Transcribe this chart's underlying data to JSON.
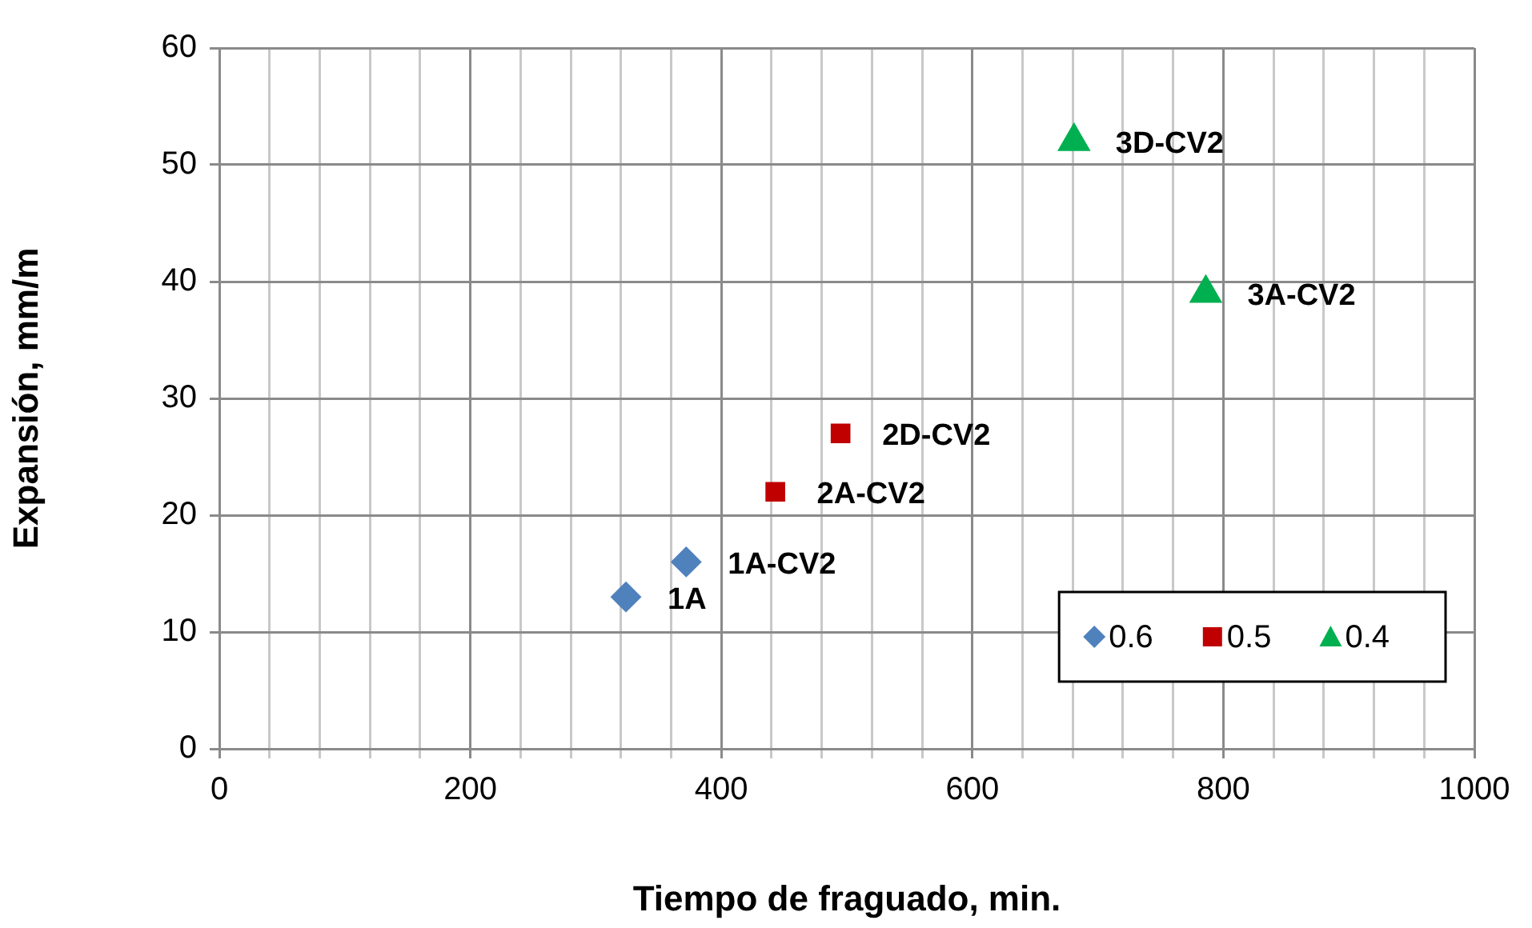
{
  "chart_data": {
    "type": "scatter",
    "xlabel": "Tiempo de fraguado, min.",
    "ylabel": "Expansión, mm/m",
    "xlim": [
      0,
      1000
    ],
    "xticks": [
      0,
      {
        "value": 40,
        "label": null
      },
      {
        "value": 80,
        "label": null
      },
      {
        "value": 120,
        "label": null
      },
      {
        "value": 160,
        "label": null
      },
      200,
      {
        "value": 240,
        "label": null
      },
      {
        "value": 280,
        "label": null
      },
      {
        "value": 320,
        "label": null
      },
      {
        "value": 360,
        "label": null
      },
      400,
      {
        "value": 440,
        "label": null
      },
      {
        "value": 480,
        "label": null
      },
      {
        "value": 520,
        "label": null
      },
      {
        "value": 560,
        "label": null
      },
      600,
      {
        "value": 640,
        "label": null
      },
      {
        "value": 680,
        "label": null
      },
      {
        "value": 720,
        "label": null
      },
      {
        "value": 760,
        "label": null
      },
      800,
      {
        "value": 840,
        "label": null
      },
      {
        "value": 880,
        "label": null
      },
      {
        "value": 920,
        "label": null
      },
      {
        "value": 960,
        "label": null
      },
      1000
    ],
    "ylim": [
      0,
      60
    ],
    "yticks": [
      0,
      10,
      20,
      30,
      40,
      50,
      60
    ],
    "grid": true,
    "legend": "bottom right",
    "series": [
      {
        "name": "0.6",
        "color": "#4f81bd",
        "marker": "diamond",
        "x": [
          324,
          372
        ],
        "values": [
          13,
          16
        ]
      },
      {
        "name": "0.5",
        "color": "#c00000",
        "marker": "square",
        "x": [
          443,
          495
        ],
        "values": [
          22,
          27
        ]
      },
      {
        "name": "0.4",
        "color": "#00b050",
        "marker": "triangle",
        "x": [
          786,
          681
        ],
        "values": [
          39,
          52
        ]
      }
    ],
    "annotations": [
      {
        "text": "1A",
        "x": 324,
        "y": 13
      },
      {
        "text": "1A-CV2",
        "x": 372,
        "y": 16
      },
      {
        "text": "2A-CV2",
        "x": 443,
        "y": 22
      },
      {
        "text": "2D-CV2",
        "x": 495,
        "y": 27
      },
      {
        "text": "3D-CV2",
        "x": 681,
        "y": 52
      },
      {
        "text": "3A-CV2",
        "x": 786,
        "y": 39
      }
    ]
  }
}
